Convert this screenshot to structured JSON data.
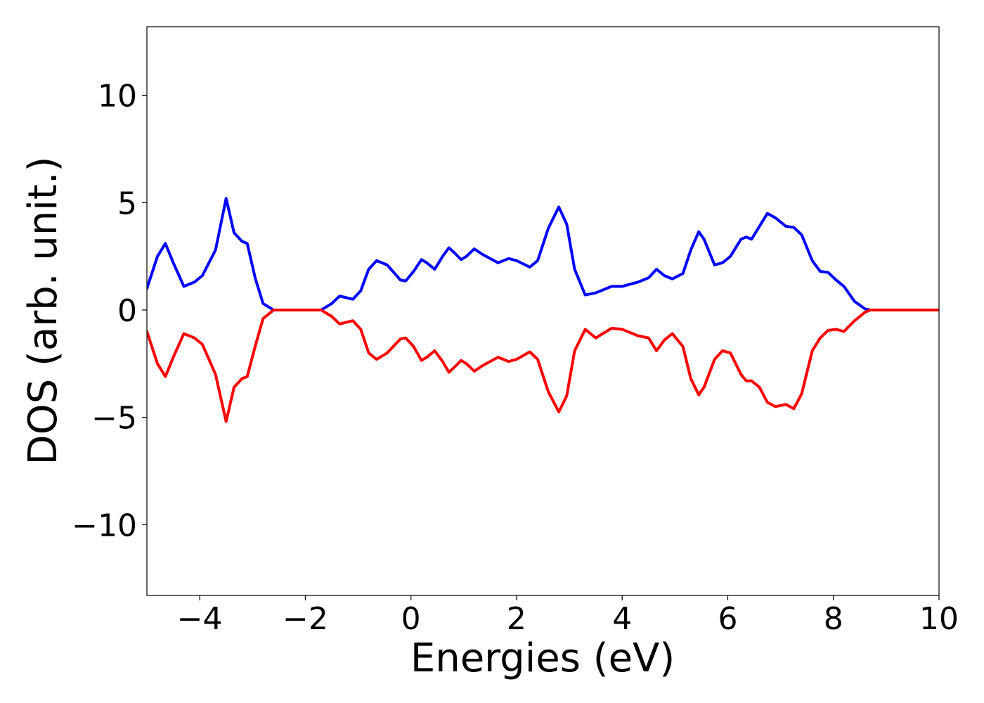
{
  "chart_data": {
    "type": "line",
    "xlabel": "Energies (eV)",
    "ylabel": "DOS (arb. unit.)",
    "xlim": [
      -5,
      10
    ],
    "ylim": [
      -13.3,
      13.2
    ],
    "xticks": [
      {
        "value": -4,
        "label": "−4"
      },
      {
        "value": -2,
        "label": "−2"
      },
      0,
      2,
      4,
      6,
      8,
      10
    ],
    "yticks": [
      {
        "value": -10,
        "label": "−10"
      },
      {
        "value": -5,
        "label": "−5"
      },
      0,
      5,
      10
    ],
    "x": [
      -5,
      -4.8,
      -4.65,
      -4.5,
      -4.3,
      -4.1,
      -3.95,
      -3.7,
      -3.5,
      -3.35,
      -3.2,
      -3.1,
      -2.95,
      -2.8,
      -2.6,
      -1.7,
      -1.5,
      -1.35,
      -1.1,
      -0.95,
      -0.8,
      -0.65,
      -0.45,
      -0.2,
      -0.1,
      0.05,
      0.2,
      0.3,
      0.45,
      0.6,
      0.72,
      0.85,
      0.95,
      1.05,
      1.2,
      1.35,
      1.5,
      1.65,
      1.85,
      2.0,
      2.25,
      2.4,
      2.6,
      2.8,
      2.95,
      3.1,
      3.3,
      3.5,
      3.8,
      4.0,
      4.3,
      4.5,
      4.65,
      4.8,
      4.95,
      5.15,
      5.3,
      5.45,
      5.55,
      5.75,
      5.9,
      6.05,
      6.25,
      6.35,
      6.45,
      6.6,
      6.75,
      6.9,
      7.1,
      7.25,
      7.4,
      7.6,
      7.75,
      7.9,
      8.05,
      8.2,
      8.4,
      8.6,
      8.7,
      10
    ],
    "series": [
      {
        "color": "#0000ff",
        "values": [
          1.0,
          2.5,
          3.1,
          2.2,
          1.1,
          1.3,
          1.6,
          2.8,
          5.2,
          3.6,
          3.2,
          3.1,
          1.5,
          0.3,
          0,
          0,
          0.3,
          0.65,
          0.5,
          0.9,
          1.9,
          2.3,
          2.1,
          1.4,
          1.35,
          1.8,
          2.35,
          2.2,
          1.9,
          2.5,
          2.9,
          2.6,
          2.35,
          2.5,
          2.85,
          2.6,
          2.4,
          2.2,
          2.4,
          2.3,
          2.0,
          2.3,
          3.8,
          4.8,
          4.0,
          1.9,
          0.7,
          0.8,
          1.1,
          1.1,
          1.3,
          1.5,
          1.9,
          1.6,
          1.45,
          1.7,
          2.8,
          3.65,
          3.3,
          2.1,
          2.2,
          2.5,
          3.3,
          3.4,
          3.3,
          3.9,
          4.5,
          4.3,
          3.9,
          3.85,
          3.5,
          2.3,
          1.8,
          1.75,
          1.4,
          1.1,
          0.4,
          0.05,
          0,
          0
        ]
      },
      {
        "color": "#ff0000",
        "values": [
          -1.0,
          -2.5,
          -3.1,
          -2.2,
          -1.1,
          -1.3,
          -1.6,
          -3.0,
          -5.2,
          -3.6,
          -3.2,
          -3.1,
          -1.7,
          -0.4,
          0,
          0,
          -0.3,
          -0.65,
          -0.5,
          -0.9,
          -2.0,
          -2.3,
          -2.0,
          -1.35,
          -1.3,
          -1.7,
          -2.35,
          -2.2,
          -1.9,
          -2.4,
          -2.9,
          -2.6,
          -2.35,
          -2.5,
          -2.85,
          -2.6,
          -2.4,
          -2.2,
          -2.4,
          -2.3,
          -1.95,
          -2.3,
          -3.8,
          -4.75,
          -4.0,
          -1.9,
          -0.9,
          -1.3,
          -0.85,
          -0.9,
          -1.2,
          -1.3,
          -1.9,
          -1.4,
          -1.1,
          -1.7,
          -3.2,
          -3.95,
          -3.6,
          -2.3,
          -1.9,
          -2.0,
          -3.0,
          -3.3,
          -3.3,
          -3.6,
          -4.3,
          -4.5,
          -4.4,
          -4.6,
          -3.9,
          -1.9,
          -1.3,
          -0.95,
          -0.9,
          -1.0,
          -0.5,
          -0.1,
          0,
          0
        ]
      }
    ]
  }
}
